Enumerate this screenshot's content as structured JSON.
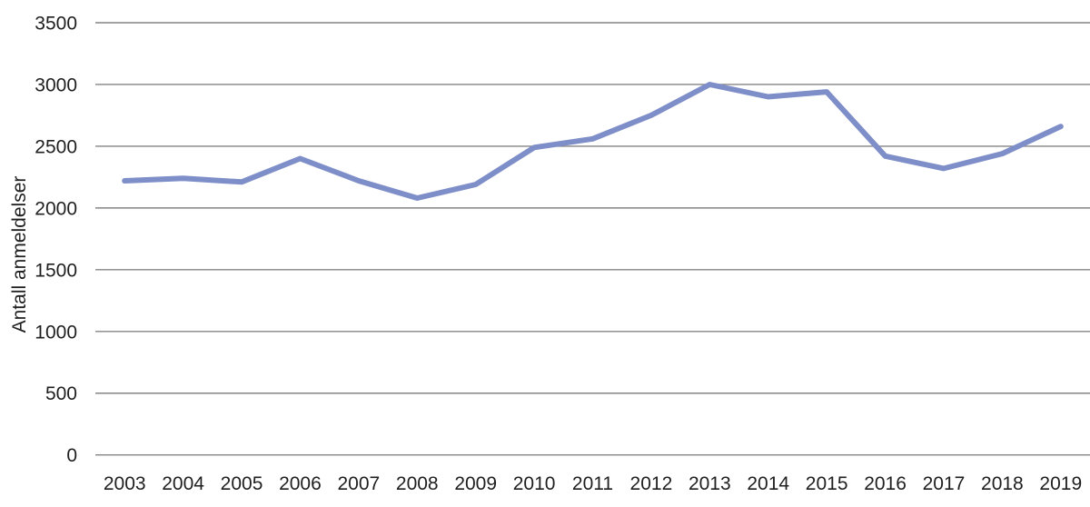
{
  "figure": {
    "background_color": "#ffffff",
    "text_color": "#1f1f1f"
  },
  "chart_data": {
    "type": "line",
    "title": "",
    "xlabel": "",
    "ylabel": "Antall anmeldelser",
    "categories": [
      "2003",
      "2004",
      "2005",
      "2006",
      "2007",
      "2008",
      "2009",
      "2010",
      "2011",
      "2012",
      "2013",
      "2014",
      "2015",
      "2016",
      "2017",
      "2018",
      "2019"
    ],
    "series": [
      {
        "name": "Antall anmeldelser",
        "values": [
          2220,
          2240,
          2210,
          2400,
          2220,
          2080,
          2190,
          2490,
          2560,
          2750,
          3000,
          2900,
          2940,
          2420,
          2320,
          2440,
          2660
        ]
      }
    ],
    "ylim": [
      0,
      3500
    ],
    "yticks": [
      0,
      500,
      1000,
      1500,
      2000,
      2500,
      3000,
      3500
    ],
    "grid": "horizontal",
    "legend": "none",
    "line_color": "#7e8ec8",
    "gridline_color": "#848484",
    "tick_text_color": "#1f1f1f"
  }
}
